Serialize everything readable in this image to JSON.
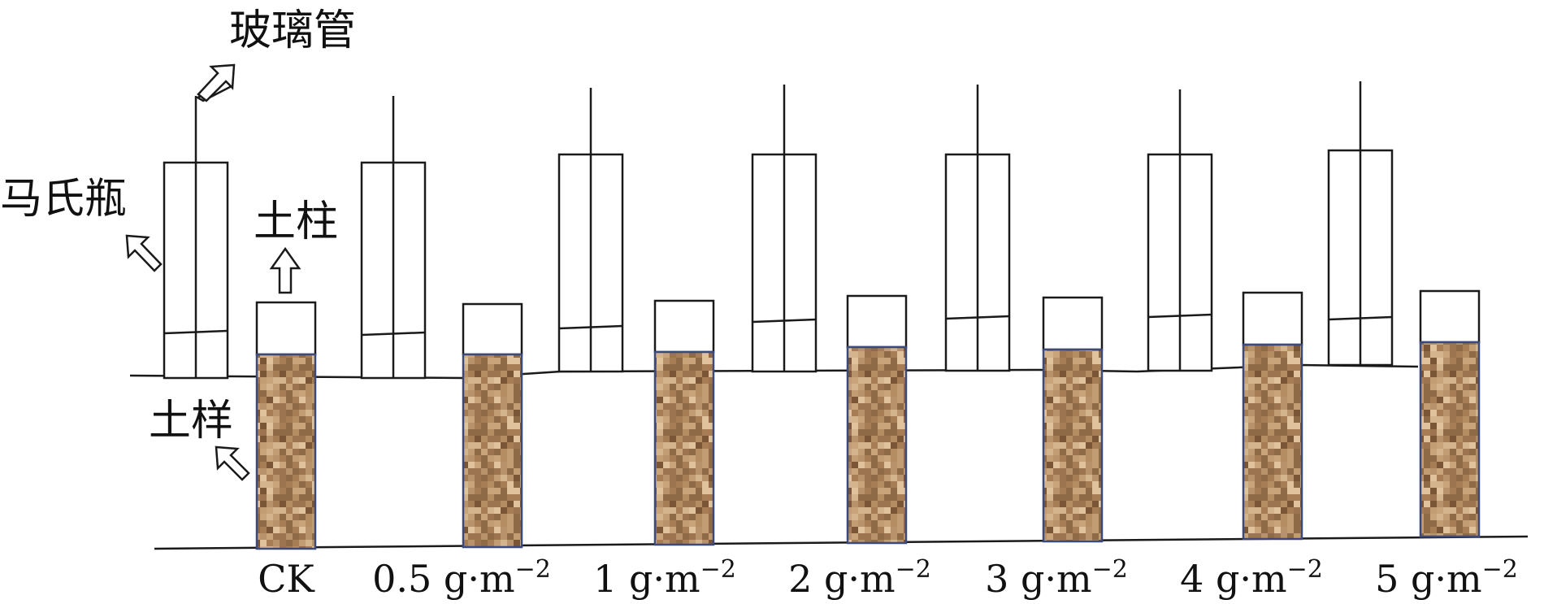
{
  "labels": {
    "glass_tube": "玻璃管",
    "mariotte_bottle": "马氏瓶",
    "soil_column": "土柱",
    "soil_sample": "土样"
  },
  "treatments": [
    {
      "name": "CK",
      "unit": ""
    },
    {
      "name": "0.5",
      "unit": "g·m−2"
    },
    {
      "name": "1",
      "unit": "g·m−2"
    },
    {
      "name": "2",
      "unit": "g·m−2"
    },
    {
      "name": "3",
      "unit": "g·m−2"
    },
    {
      "name": "4",
      "unit": "g·m−2"
    },
    {
      "name": "5",
      "unit": "g·m−2"
    }
  ],
  "colors": {
    "line": "#1a1a1a",
    "soil_base": "#b8926a",
    "soil_border": "#3b4a7a"
  }
}
